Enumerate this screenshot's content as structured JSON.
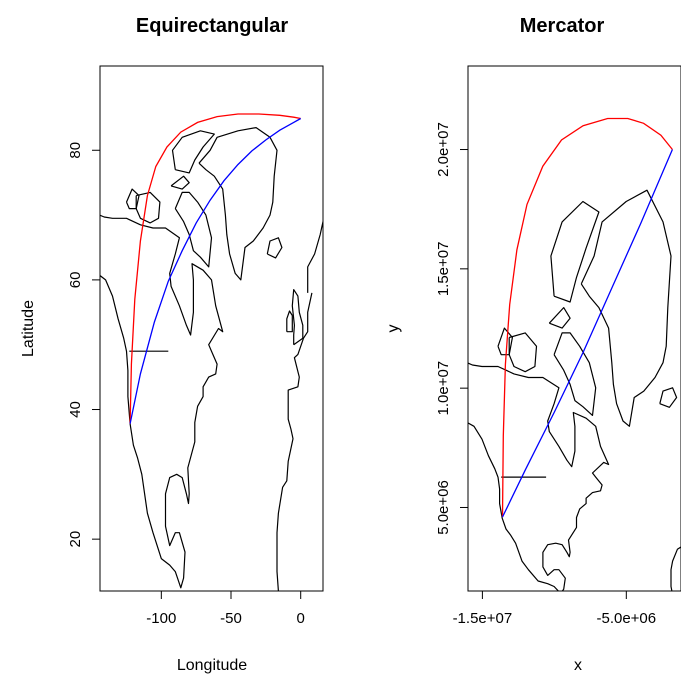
{
  "chart_data": [
    {
      "type": "line",
      "title": "Equirectangular",
      "xlabel": "Longitude",
      "ylabel": "Latitude",
      "xlim": [
        -144,
        16
      ],
      "ylim": [
        12,
        93
      ],
      "xticks": [
        -100,
        -50,
        0
      ],
      "xtick_labels": [
        "-100",
        "-50",
        "0"
      ],
      "yticks": [
        20,
        40,
        60,
        80
      ],
      "ytick_labels": [
        "20",
        "40",
        "60",
        "80"
      ],
      "grid": false,
      "series": [
        {
          "color": "#ff0000",
          "x": [
            -122.4,
            -121.5,
            -119,
            -115,
            -110,
            -104,
            -96,
            -86,
            -74,
            -60,
            -45,
            -30,
            -15,
            -5,
            0
          ],
          "y": [
            37.8,
            47,
            57,
            66,
            73,
            77.5,
            80.5,
            82.8,
            84.3,
            85.2,
            85.6,
            85.6,
            85.4,
            85.1,
            84.9
          ]
        },
        {
          "color": "#0000ff",
          "x": [
            -122.4,
            -115,
            -105,
            -95,
            -85,
            -75,
            -65,
            -55,
            -45,
            -35,
            -25,
            -15,
            -5,
            0
          ],
          "y": [
            37.8,
            45.5,
            53.5,
            59.8,
            64.5,
            68.8,
            72.3,
            75.3,
            77.8,
            79.9,
            81.6,
            83.1,
            84.3,
            84.9
          ]
        }
      ]
    },
    {
      "type": "line",
      "title": "Mercator",
      "xlabel": "x",
      "ylabel": "y",
      "xlim": [
        -16000000.0,
        -1200000.0
      ],
      "ylim": [
        1500000.0,
        23500000.0
      ],
      "xticks": [
        -15000000.0,
        -5000000.0
      ],
      "xtick_labels": [
        "-1.5e+07",
        "-5.0e+06"
      ],
      "yticks": [
        5000000.0,
        10000000.0,
        15000000.0,
        20000000.0
      ],
      "ytick_labels": [
        "5.0e+06",
        "1.0e+07",
        "1.5e+07",
        "2.0e+07"
      ],
      "grid": false,
      "series": [
        {
          "color": "#ff0000",
          "x": [
            -13600000.0,
            -13550000.0,
            -13400000.0,
            -13100000.0,
            -12600000.0,
            -11900000.0,
            -10800000.0,
            -9500000.0,
            -8000000.0,
            -6300000.0,
            -4900000.0,
            -3800000.0,
            -2600000.0,
            -1800000.0
          ],
          "y": [
            4600000.0,
            8000000.0,
            11000000.0,
            13500000.0,
            15800000.0,
            17700000.0,
            19300000.0,
            20400000.0,
            21000000.0,
            21300000.0,
            21300000.0,
            21100000.0,
            20600000.0,
            20000000.0
          ]
        },
        {
          "color": "#0000ff",
          "x": [
            -13600000.0,
            -12000000.0,
            -10000000.0,
            -8000000.0,
            -6000000.0,
            -4000000.0,
            -1800000.0
          ],
          "y": [
            4600000.0,
            6600000.0,
            9000000.0,
            11500000.0,
            14200000.0,
            16900000.0,
            20000000.0
          ]
        }
      ]
    }
  ]
}
